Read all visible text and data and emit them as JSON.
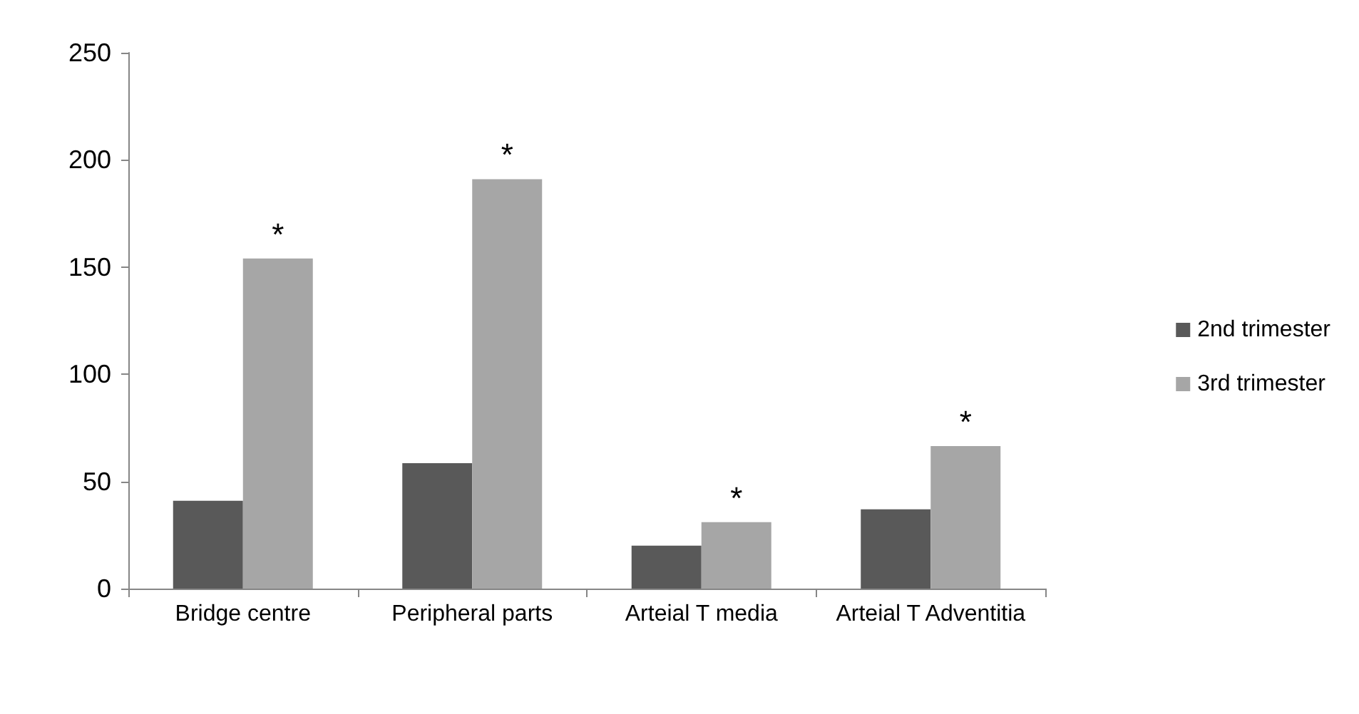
{
  "chart_data": {
    "type": "bar",
    "categories": [
      "Bridge centre",
      "Peripheral parts",
      "Arteial T media",
      "Arteial T Adventitia"
    ],
    "series": [
      {
        "name": "2nd trimester",
        "color": "#595959",
        "values": [
          41,
          58.5,
          20,
          37
        ]
      },
      {
        "name": "3rd trimester",
        "color": "#a6a6a6",
        "values": [
          154,
          191,
          31,
          66.5
        ]
      }
    ],
    "ylim": [
      0,
      250
    ],
    "yticks": [
      0,
      50,
      100,
      150,
      200,
      250
    ],
    "grid": false,
    "legend": "right",
    "annotations": [
      {
        "text": "*",
        "x": "Bridge centre",
        "y": 154
      },
      {
        "text": "*",
        "x": "Peripheral parts",
        "y": 191
      },
      {
        "text": "*",
        "x": "Arteial T media",
        "y": 31
      },
      {
        "text": "*",
        "x": "Arteial T Adventitia",
        "y": 66.5
      }
    ]
  }
}
